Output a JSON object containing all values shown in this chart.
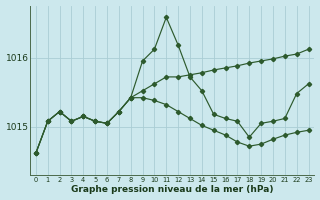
{
  "title": "Graphe pression niveau de la mer (hPa)",
  "background_color": "#cce8ed",
  "grid_color": "#aacdd4",
  "line_color": "#2d5a2d",
  "ylim": [
    1014.3,
    1016.75
  ],
  "yticks": [
    1015.0,
    1016.0
  ],
  "ytick_labels": [
    "1015",
    "1016"
  ],
  "s1": [
    1014.62,
    1015.08,
    1015.22,
    1015.08,
    1015.15,
    1015.08,
    1015.05,
    1015.22,
    1015.42,
    1015.95,
    1016.12,
    1016.58,
    1016.18,
    1015.72,
    1015.52,
    1015.18,
    1015.12,
    1015.08,
    1014.85,
    1015.05,
    1015.08,
    1015.12,
    1015.48,
    1015.62
  ],
  "s2": [
    1014.62,
    1015.08,
    1015.22,
    1015.08,
    1015.15,
    1015.08,
    1015.05,
    1015.22,
    1015.42,
    1015.52,
    1015.62,
    1015.72,
    1015.72,
    1015.75,
    1015.78,
    1015.82,
    1015.85,
    1015.88,
    1015.92,
    1015.95,
    1015.98,
    1016.02,
    1016.05,
    1016.12
  ],
  "s3": [
    1014.62,
    1015.08,
    1015.22,
    1015.08,
    1015.15,
    1015.08,
    1015.05,
    1015.22,
    1015.42,
    1015.42,
    1015.38,
    1015.32,
    1015.22,
    1015.12,
    1015.02,
    1014.95,
    1014.88,
    1014.78,
    1014.72,
    1014.75,
    1014.82,
    1014.88,
    1014.92,
    1014.95
  ]
}
